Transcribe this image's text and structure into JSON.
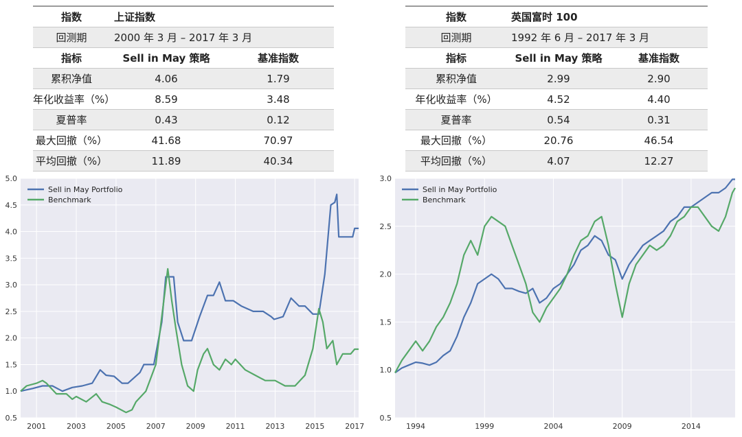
{
  "table_left": {
    "index_label": "指数",
    "index_name": "上证指数",
    "period_label": "回测期",
    "period_value": "2000 年 3 月 – 2017 年 3 月",
    "col_metric": "指标",
    "col_strategy": "Sell in May 策略",
    "col_benchmark": "基准指数",
    "rows": [
      {
        "metric": "累积净值",
        "strategy": "4.06",
        "benchmark": "1.79"
      },
      {
        "metric": "年化收益率（%）",
        "strategy": "8.59",
        "benchmark": "3.48"
      },
      {
        "metric": "夏普率",
        "strategy": "0.43",
        "benchmark": "0.12"
      },
      {
        "metric": "最大回撤（%）",
        "strategy": "41.68",
        "benchmark": "70.97"
      },
      {
        "metric": "平均回撤（%）",
        "strategy": "11.89",
        "benchmark": "40.34"
      }
    ]
  },
  "table_right": {
    "index_label": "指数",
    "index_name": "英国富时 100",
    "period_label": "回测期",
    "period_value": "1992 年 6 月 – 2017 年 3 月",
    "col_metric": "指标",
    "col_strategy": "Sell in May 策略",
    "col_benchmark": "基准指数",
    "rows": [
      {
        "metric": "累积净值",
        "strategy": "2.99",
        "benchmark": "2.90"
      },
      {
        "metric": "年化收益率（%）",
        "strategy": "4.52",
        "benchmark": "4.40"
      },
      {
        "metric": "夏普率",
        "strategy": "0.54",
        "benchmark": "0.31"
      },
      {
        "metric": "最大回撤（%）",
        "strategy": "20.76",
        "benchmark": "46.54"
      },
      {
        "metric": "平均回撤（%）",
        "strategy": "4.07",
        "benchmark": "12.27"
      }
    ]
  },
  "colors": {
    "strategy": "#4c72b0",
    "benchmark": "#55a868",
    "plot_bg": "#eaeaf2",
    "grid": "#ffffff"
  },
  "chart_data": [
    {
      "type": "line",
      "title": "上证指数",
      "xlabel": "",
      "ylabel": "",
      "xlim": [
        2000.2,
        2017.2
      ],
      "ylim": [
        0.5,
        5.0
      ],
      "xticks": [
        2001,
        2003,
        2005,
        2007,
        2009,
        2011,
        2013,
        2015,
        2017
      ],
      "yticks": [
        0.5,
        1.0,
        1.5,
        2.0,
        2.5,
        3.0,
        3.5,
        4.0,
        4.5,
        5.0
      ],
      "legend": "top-left",
      "series": [
        {
          "name": "Sell in May Portfolio",
          "x": [
            2000.2,
            2000.8,
            2001.3,
            2001.8,
            2002.3,
            2002.8,
            2003.3,
            2003.8,
            2004.2,
            2004.5,
            2004.9,
            2005.3,
            2005.6,
            2006.2,
            2006.4,
            2006.9,
            2007.3,
            2007.5,
            2007.9,
            2008.1,
            2008.4,
            2008.8,
            2009.2,
            2009.6,
            2009.9,
            2010.2,
            2010.5,
            2010.9,
            2011.3,
            2011.9,
            2012.4,
            2012.8,
            2012.95,
            2013.4,
            2013.8,
            2014.2,
            2014.5,
            2014.9,
            2015.1,
            2015.2,
            2015.5,
            2015.8,
            2016.0,
            2016.1,
            2016.2,
            2016.6,
            2016.9,
            2017.0,
            2017.2
          ],
          "y": [
            1.0,
            1.05,
            1.1,
            1.1,
            1.0,
            1.07,
            1.1,
            1.15,
            1.4,
            1.3,
            1.28,
            1.15,
            1.15,
            1.35,
            1.5,
            1.5,
            2.3,
            3.15,
            3.15,
            2.3,
            1.95,
            1.95,
            2.4,
            2.8,
            2.8,
            3.05,
            2.7,
            2.7,
            2.6,
            2.5,
            2.5,
            2.4,
            2.35,
            2.4,
            2.75,
            2.6,
            2.6,
            2.45,
            2.45,
            2.45,
            3.2,
            4.5,
            4.55,
            4.7,
            3.9,
            3.9,
            3.9,
            4.06,
            4.06
          ]
        },
        {
          "name": "Benchmark",
          "x": [
            2000.2,
            2000.5,
            2001.0,
            2001.3,
            2001.5,
            2002.0,
            2002.5,
            2002.8,
            2003.0,
            2003.5,
            2004.0,
            2004.3,
            2004.7,
            2005.0,
            2005.5,
            2005.8,
            2006.0,
            2006.5,
            2007.0,
            2007.3,
            2007.6,
            2007.8,
            2008.0,
            2008.3,
            2008.6,
            2008.9,
            2009.1,
            2009.4,
            2009.6,
            2009.9,
            2010.2,
            2010.5,
            2010.8,
            2011.0,
            2011.5,
            2012.0,
            2012.5,
            2013.0,
            2013.5,
            2014.0,
            2014.5,
            2014.9,
            2015.2,
            2015.4,
            2015.6,
            2015.9,
            2016.1,
            2016.4,
            2016.8,
            2017.0,
            2017.2
          ],
          "y": [
            1.0,
            1.1,
            1.15,
            1.2,
            1.15,
            0.95,
            0.95,
            0.85,
            0.9,
            0.8,
            0.95,
            0.8,
            0.75,
            0.7,
            0.6,
            0.65,
            0.8,
            1.0,
            1.5,
            2.4,
            3.3,
            2.7,
            2.2,
            1.5,
            1.1,
            1.0,
            1.4,
            1.7,
            1.8,
            1.5,
            1.4,
            1.6,
            1.5,
            1.6,
            1.4,
            1.3,
            1.2,
            1.2,
            1.1,
            1.1,
            1.3,
            1.8,
            2.55,
            2.3,
            1.8,
            1.95,
            1.5,
            1.7,
            1.7,
            1.79,
            1.79
          ]
        }
      ]
    },
    {
      "type": "line",
      "title": "英国富时 100",
      "xlabel": "",
      "ylabel": "",
      "xlim": [
        1992.5,
        2017.2
      ],
      "ylim": [
        0.5,
        3.0
      ],
      "xticks": [
        1994,
        1999,
        2004,
        2009,
        2014
      ],
      "yticks": [
        0.5,
        1.0,
        1.5,
        2.0,
        2.5,
        3.0
      ],
      "legend": "top-left",
      "series": [
        {
          "name": "Sell in May Portfolio",
          "x": [
            1992.5,
            1993.0,
            1993.5,
            1994.0,
            1994.5,
            1995.0,
            1995.5,
            1996.0,
            1996.5,
            1997.0,
            1997.5,
            1998.0,
            1998.5,
            1999.0,
            1999.5,
            2000.0,
            2000.5,
            2001.0,
            2001.5,
            2002.0,
            2002.5,
            2003.0,
            2003.5,
            2004.0,
            2004.5,
            2005.0,
            2005.5,
            2006.0,
            2006.5,
            2007.0,
            2007.5,
            2008.0,
            2008.5,
            2009.0,
            2009.5,
            2010.0,
            2010.5,
            2011.0,
            2011.5,
            2012.0,
            2012.5,
            2013.0,
            2013.5,
            2014.0,
            2014.5,
            2015.0,
            2015.5,
            2016.0,
            2016.5,
            2017.0,
            2017.2
          ],
          "y": [
            0.97,
            1.02,
            1.05,
            1.08,
            1.07,
            1.05,
            1.08,
            1.15,
            1.2,
            1.35,
            1.55,
            1.7,
            1.9,
            1.95,
            2.0,
            1.95,
            1.85,
            1.85,
            1.82,
            1.8,
            1.85,
            1.7,
            1.75,
            1.85,
            1.9,
            2.0,
            2.1,
            2.25,
            2.3,
            2.4,
            2.35,
            2.2,
            2.15,
            1.95,
            2.1,
            2.2,
            2.3,
            2.35,
            2.4,
            2.45,
            2.55,
            2.6,
            2.7,
            2.7,
            2.75,
            2.8,
            2.85,
            2.85,
            2.9,
            2.99,
            2.99
          ]
        },
        {
          "name": "Benchmark",
          "x": [
            1992.5,
            1993.0,
            1993.5,
            1994.0,
            1994.5,
            1995.0,
            1995.5,
            1996.0,
            1996.5,
            1997.0,
            1997.5,
            1998.0,
            1998.5,
            1999.0,
            1999.5,
            2000.0,
            2000.5,
            2001.0,
            2001.5,
            2002.0,
            2002.5,
            2003.0,
            2003.5,
            2004.0,
            2004.5,
            2005.0,
            2005.5,
            2006.0,
            2006.5,
            2007.0,
            2007.5,
            2008.0,
            2008.5,
            2009.0,
            2009.5,
            2010.0,
            2010.5,
            2011.0,
            2011.5,
            2012.0,
            2012.5,
            2013.0,
            2013.5,
            2014.0,
            2014.5,
            2015.0,
            2015.5,
            2016.0,
            2016.5,
            2017.0,
            2017.2
          ],
          "y": [
            0.97,
            1.1,
            1.2,
            1.3,
            1.2,
            1.3,
            1.45,
            1.55,
            1.7,
            1.9,
            2.2,
            2.35,
            2.2,
            2.5,
            2.6,
            2.55,
            2.5,
            2.3,
            2.1,
            1.9,
            1.6,
            1.5,
            1.65,
            1.75,
            1.85,
            2.0,
            2.2,
            2.35,
            2.4,
            2.55,
            2.6,
            2.3,
            1.9,
            1.55,
            1.9,
            2.1,
            2.2,
            2.3,
            2.25,
            2.3,
            2.4,
            2.55,
            2.6,
            2.7,
            2.7,
            2.6,
            2.5,
            2.45,
            2.6,
            2.85,
            2.9
          ]
        }
      ]
    }
  ]
}
